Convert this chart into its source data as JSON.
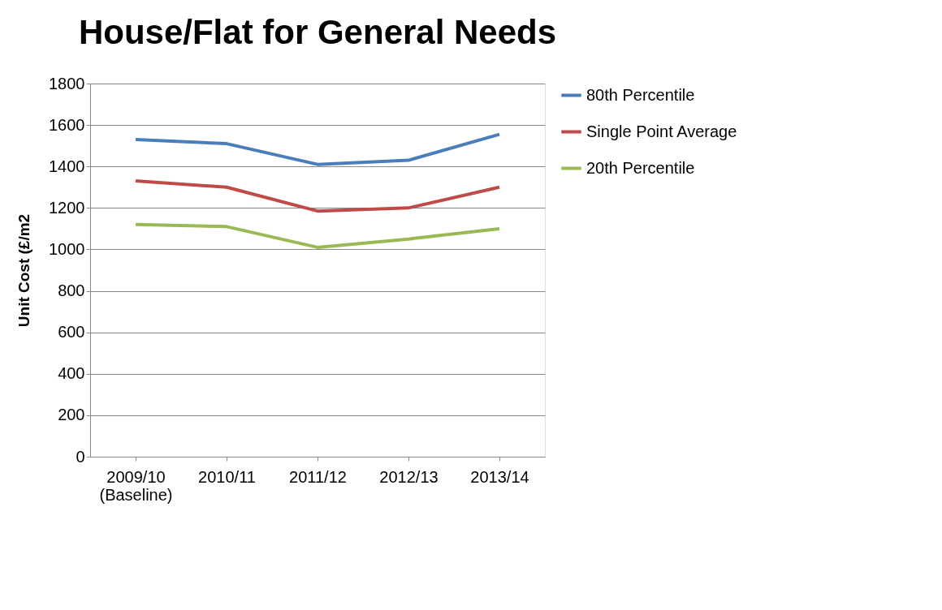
{
  "chart_data": {
    "type": "line",
    "title": "House/Flat for General Needs",
    "ylabel": "Unit Cost  (£/m2",
    "categories": [
      "2009/10\n(Baseline)",
      "2010/11",
      "2011/12",
      "2012/13",
      "2013/14"
    ],
    "series": [
      {
        "name": "80th Percentile",
        "color": "#4a7ebb",
        "values": [
          1530,
          1510,
          1410,
          1430,
          1555
        ]
      },
      {
        "name": "Single Point Average",
        "color": "#be4b48",
        "values": [
          1330,
          1300,
          1185,
          1200,
          1300
        ]
      },
      {
        "name": "20th Percentile",
        "color": "#98b954",
        "values": [
          1120,
          1110,
          1010,
          1050,
          1100
        ]
      }
    ],
    "ylim": [
      0,
      1800
    ],
    "yticks": [
      0,
      200,
      400,
      600,
      800,
      1000,
      1200,
      1400,
      1600,
      1800
    ],
    "grid": "y",
    "legend": "right",
    "marker": "none",
    "line_style": "solid"
  }
}
